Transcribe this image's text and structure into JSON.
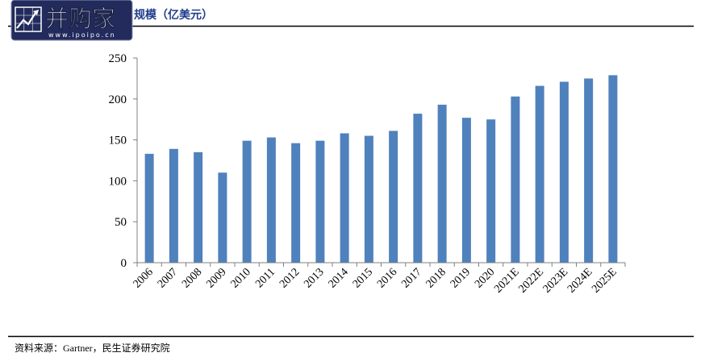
{
  "logo": {
    "name": "并购家",
    "url": "www.ipoipo.cn"
  },
  "source": "资料来源：Gartner，民生证券研究院",
  "colors": {
    "bar": "#4f81bd",
    "title": "#1f3d8a",
    "logo_bg": "#222b5c",
    "axis": "#808080",
    "rule": "#000000"
  },
  "chart_data": {
    "type": "bar",
    "title": "规模（亿美元）",
    "xlabel": "",
    "ylabel": "",
    "categories": [
      "2006",
      "2007",
      "2008",
      "2009",
      "2010",
      "2011",
      "2012",
      "2013",
      "2014",
      "2015",
      "2016",
      "2017",
      "2018",
      "2019",
      "2020",
      "2021E",
      "2022E",
      "2023E",
      "2024E",
      "2025E"
    ],
    "values": [
      133,
      139,
      135,
      110,
      149,
      153,
      146,
      149,
      158,
      155,
      161,
      182,
      193,
      177,
      175,
      203,
      216,
      221,
      225,
      229
    ],
    "ylim": [
      0,
      250
    ],
    "yticks": [
      0,
      50,
      100,
      150,
      200,
      250
    ],
    "grid": false,
    "legend": "none"
  }
}
